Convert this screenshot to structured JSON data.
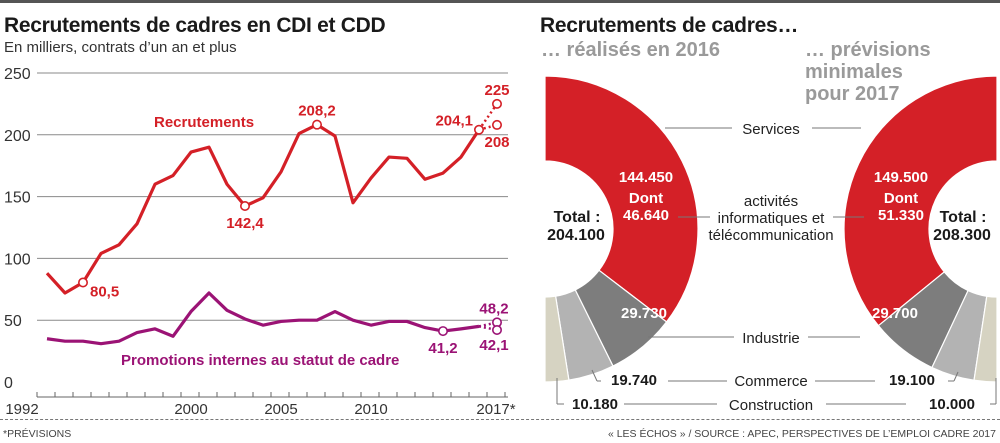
{
  "left": {
    "title": "Recrutements de cadres en CDI et CDD",
    "subtitle": "En milliers, contrats d’un an et plus"
  },
  "right": {
    "title": "Recrutements de cadres…",
    "subtitle_2016": "… réalisés en 2016",
    "subtitle_2017": [
      "… prévisions",
      "minimales",
      "pour 2017"
    ]
  },
  "footer": {
    "note": "*PRÉVISIONS",
    "source": "« LES ÉCHOS » / SOURCE : APEC, PERSPECTIVES DE L’EMPLOI CADRE 2017"
  },
  "colors": {
    "recrutements": "#d42027",
    "promotions": "#9b1375",
    "services": "#d42027",
    "industrie": "#7d7d7d",
    "commerce": "#b3b3b3",
    "construction": "#d6d3c2",
    "grid": "#8a8a8a"
  },
  "chart_data": [
    {
      "type": "line",
      "title": "Recrutements de cadres en CDI et CDD",
      "subtitle": "En milliers, contrats d’un an et plus",
      "xlabel": "",
      "ylabel": "",
      "x": [
        1992,
        1993,
        1994,
        1995,
        1996,
        1997,
        1998,
        1999,
        2000,
        2001,
        2002,
        2003,
        2004,
        2005,
        2006,
        2007,
        2008,
        2009,
        2010,
        2011,
        2012,
        2013,
        2014,
        2015,
        2016
      ],
      "x_tick_labels": [
        "1992",
        "2000",
        "2005",
        "2010",
        "2017*"
      ],
      "x_tick_label_years": [
        1992,
        2000,
        2005,
        2010,
        2017
      ],
      "ylim": [
        0,
        250
      ],
      "y_ticks": [
        0,
        50,
        100,
        150,
        200,
        250
      ],
      "grid": true,
      "series": [
        {
          "name": "Recrutements",
          "key": "recrutements",
          "values": [
            88,
            72,
            80.5,
            104,
            111,
            128,
            160,
            167,
            186,
            190,
            160,
            142.4,
            149,
            170,
            201,
            208.2,
            199,
            145,
            165,
            182,
            181,
            164,
            169,
            182,
            204.1
          ],
          "forecast_2017": [
            225,
            208
          ],
          "forecast_labels": [
            "225",
            "208"
          ],
          "annotations": [
            {
              "x": 1994,
              "y": 80.5,
              "label": "80,5",
              "pos": "right"
            },
            {
              "x": 2003,
              "y": 142.4,
              "label": "142,4",
              "pos": "below"
            },
            {
              "x": 2007,
              "y": 208.2,
              "label": "208,2",
              "pos": "above"
            },
            {
              "x": 2016,
              "y": 204.1,
              "label": "204,1",
              "pos": "left"
            }
          ],
          "label_text": "Recrutements"
        },
        {
          "name": "Promotions internes au statut de cadre",
          "key": "promotions",
          "values": [
            35,
            33,
            33,
            31,
            33,
            40,
            43,
            37,
            57,
            72,
            58,
            51,
            46,
            49,
            50,
            50,
            57,
            50,
            46,
            49,
            49,
            44,
            41.2,
            43,
            45
          ],
          "forecast_2017": [
            48.2,
            42.1
          ],
          "forecast_labels": [
            "48,2",
            "42,1"
          ],
          "annotations": [
            {
              "x": 2014,
              "y": 41.2,
              "label": "41,2",
              "pos": "below"
            }
          ],
          "label_text": "Promotions internes au statut de cadre"
        }
      ],
      "legend": "inline"
    },
    {
      "type": "pie",
      "title": "Recrutements de cadres… réalisés en 2016",
      "center_label": [
        "Total :",
        "204.100"
      ],
      "total": 204100,
      "categories": [
        "Services",
        "Industrie",
        "Commerce",
        "Construction"
      ],
      "values": [
        144450,
        29730,
        19740,
        10180
      ],
      "value_labels": [
        "144.450",
        "29.730",
        "19.740",
        "10.180"
      ],
      "sub_label": [
        "Dont",
        "46.640"
      ],
      "sub_value": 46640,
      "sub_category": "activités informatiques et télécommunication"
    },
    {
      "type": "pie",
      "title": "Recrutements de cadres… prévisions minimales pour 2017",
      "center_label": [
        "Total :",
        "208.300"
      ],
      "total": 208300,
      "categories": [
        "Services",
        "Industrie",
        "Commerce",
        "Construction"
      ],
      "values": [
        149500,
        29700,
        19100,
        10000
      ],
      "value_labels": [
        "149.500",
        "29.700",
        "19.100",
        "10.000"
      ],
      "sub_label": [
        "Dont",
        "51.330"
      ],
      "sub_value": 51330,
      "sub_category": "activités informatiques et télécommunication"
    }
  ],
  "category_labels": {
    "services": "Services",
    "it": [
      "activités",
      "informatiques et",
      "télécommunication"
    ],
    "industrie": "Industrie",
    "commerce": "Commerce",
    "construction": "Construction"
  }
}
